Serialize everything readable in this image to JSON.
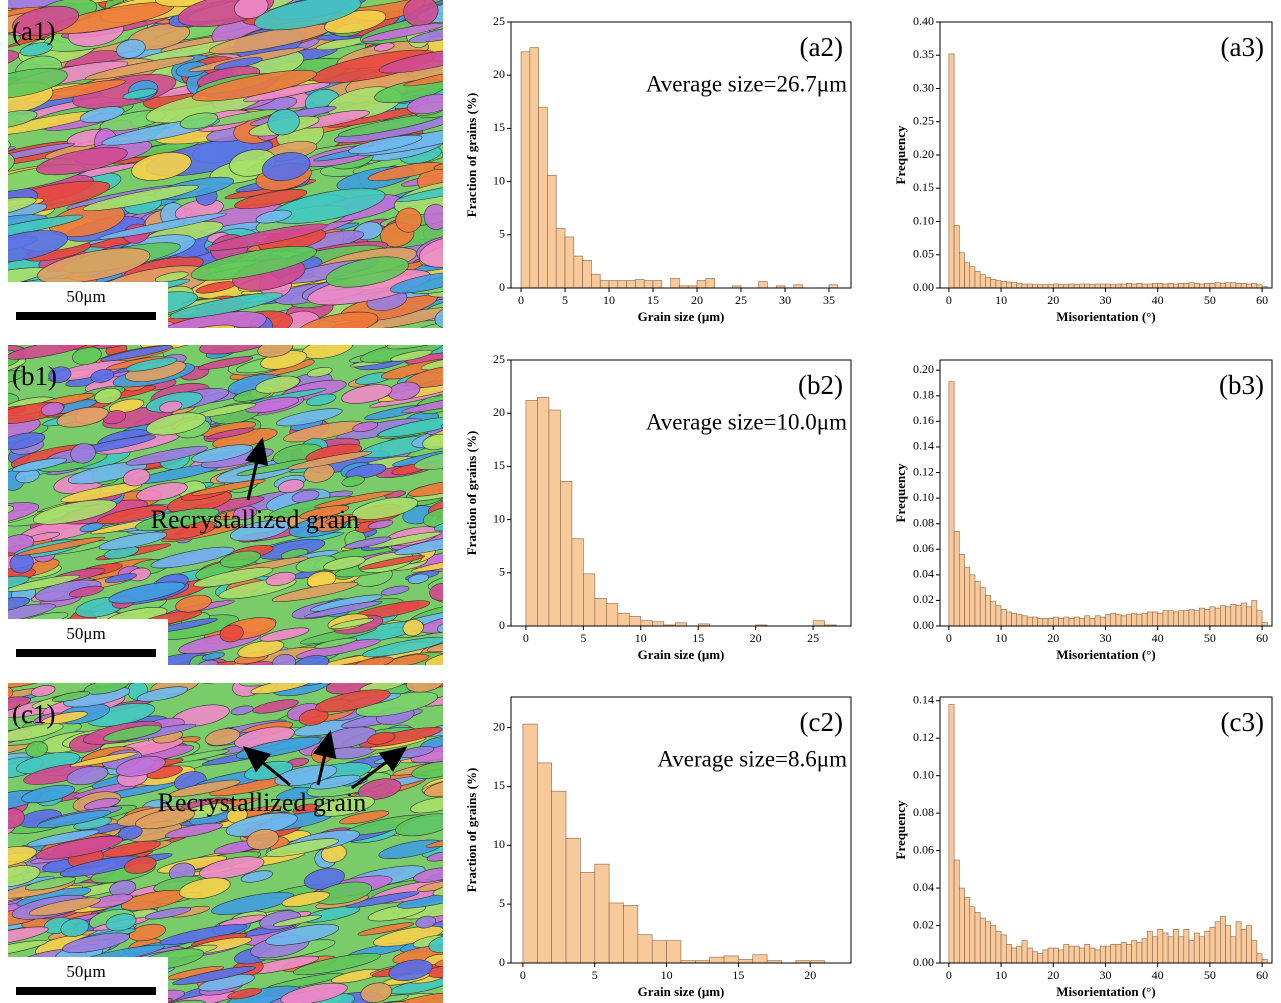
{
  "images": [
    {
      "label": "(a1)",
      "scale": "50μm"
    },
    {
      "label": "(b1)",
      "scale": "50μm",
      "annotation": "Recrystallized grain"
    },
    {
      "label": "(c1)",
      "scale": "50μm",
      "annotation": "Recrystallized grain"
    }
  ],
  "chart_data": [
    {
      "type": "histogram",
      "panel_label": "(a2)",
      "subtitle": "Average size=26.7μm",
      "x_label": "Grain size (μm)",
      "y_label": "Fraction of grains (%)",
      "color": "#f7c99b",
      "bins": [
        0,
        1,
        2,
        3,
        4,
        5,
        6,
        7,
        8,
        9,
        10,
        11,
        12,
        13,
        14,
        15,
        16,
        17,
        18,
        19,
        20,
        21,
        22,
        23,
        24,
        25,
        26,
        27,
        28,
        29,
        30,
        31,
        32,
        33,
        34,
        35,
        36,
        37
      ],
      "values": [
        22.2,
        22.6,
        17.0,
        10.6,
        5.6,
        4.8,
        3.0,
        2.6,
        1.3,
        0.7,
        0.7,
        0.7,
        0.7,
        0.8,
        0.7,
        0.7,
        0,
        0.9,
        0.2,
        0.2,
        0.7,
        0.9,
        0,
        0,
        0.2,
        0,
        0,
        0.6,
        0,
        0.2,
        0,
        0.3,
        0,
        0,
        0,
        0.3,
        0
      ],
      "xlim": [
        -1.14,
        37.5
      ],
      "ylim": [
        0,
        25
      ],
      "xticks": [
        0,
        5,
        10,
        15,
        20,
        25,
        30,
        35
      ],
      "yticks": [
        0,
        5,
        10,
        15,
        20,
        25
      ]
    },
    {
      "type": "histogram",
      "panel_label": "(a3)",
      "x_label": "Misorientation (°)",
      "y_label": "Frequency",
      "color": "#f7c99b",
      "bins": [
        0,
        1,
        2,
        3,
        4,
        5,
        6,
        7,
        8,
        9,
        10,
        11,
        12,
        13,
        14,
        15,
        16,
        17,
        18,
        19,
        20,
        21,
        22,
        23,
        24,
        25,
        26,
        27,
        28,
        29,
        30,
        31,
        32,
        33,
        34,
        35,
        36,
        37,
        38,
        39,
        40,
        41,
        42,
        43,
        44,
        45,
        46,
        47,
        48,
        49,
        50,
        51,
        52,
        53,
        54,
        55,
        56,
        57,
        58,
        59,
        60,
        61
      ],
      "values": [
        0.352,
        0.094,
        0.053,
        0.038,
        0.032,
        0.025,
        0.02,
        0.016,
        0.013,
        0.011,
        0.01,
        0.009,
        0.008,
        0.007,
        0.006,
        0.006,
        0.005,
        0.005,
        0.005,
        0.005,
        0.006,
        0.005,
        0.005,
        0.006,
        0.005,
        0.006,
        0.006,
        0.005,
        0.006,
        0.006,
        0.006,
        0.005,
        0.006,
        0.006,
        0.007,
        0.006,
        0.007,
        0.006,
        0.006,
        0.007,
        0.007,
        0.006,
        0.007,
        0.006,
        0.007,
        0.007,
        0.008,
        0.007,
        0.006,
        0.007,
        0.007,
        0.008,
        0.007,
        0.008,
        0.008,
        0.007,
        0.007,
        0.006,
        0.007,
        0.005,
        0.002
      ],
      "xlim": [
        -1.7,
        61.9
      ],
      "ylim": [
        0,
        0.4
      ],
      "xticks": [
        0,
        10,
        20,
        30,
        40,
        50,
        60
      ],
      "yticks": [
        {
          "value": 0,
          "label": "0.00"
        },
        0.05,
        {
          "value": 0.1,
          "label": "0.10"
        },
        0.15,
        {
          "value": 0.2,
          "label": "0.20"
        },
        0.25,
        {
          "value": 0.3,
          "label": "0.30"
        },
        0.35,
        {
          "value": 0.4,
          "label": "0.40"
        }
      ]
    },
    {
      "type": "histogram",
      "panel_label": "(b2)",
      "subtitle": "Average size=10.0μm",
      "x_label": "Grain size (μm)",
      "y_label": "Fraction of grains (%)",
      "color": "#f7c99b",
      "bins": [
        0,
        1,
        2,
        3,
        4,
        5,
        6,
        7,
        8,
        9,
        10,
        11,
        12,
        13,
        14,
        15,
        16,
        17,
        18,
        19,
        20,
        21,
        22,
        23,
        24,
        25,
        26,
        27,
        28
      ],
      "values": [
        21.2,
        21.5,
        20.3,
        13.6,
        8.2,
        4.9,
        2.6,
        2.1,
        1.2,
        0.9,
        0.5,
        0.4,
        0.1,
        0.3,
        0,
        0.2,
        0,
        0,
        0,
        0,
        0.1,
        0,
        0,
        0,
        0,
        0.5,
        0.1,
        0
      ],
      "xlim": [
        -1.3,
        28.3
      ],
      "ylim": [
        0,
        25
      ],
      "xticks": [
        0,
        5,
        10,
        15,
        20,
        25
      ],
      "yticks": [
        0,
        5,
        10,
        15,
        20,
        25
      ]
    },
    {
      "type": "histogram",
      "panel_label": "(b3)",
      "x_label": "Misorientation (°)",
      "y_label": "Frequency",
      "color": "#f7c99b",
      "bins": [
        0,
        1,
        2,
        3,
        4,
        5,
        6,
        7,
        8,
        9,
        10,
        11,
        12,
        13,
        14,
        15,
        16,
        17,
        18,
        19,
        20,
        21,
        22,
        23,
        24,
        25,
        26,
        27,
        28,
        29,
        30,
        31,
        32,
        33,
        34,
        35,
        36,
        37,
        38,
        39,
        40,
        41,
        42,
        43,
        44,
        45,
        46,
        47,
        48,
        49,
        50,
        51,
        52,
        53,
        54,
        55,
        56,
        57,
        58,
        59,
        60,
        61
      ],
      "values": [
        0.191,
        0.074,
        0.056,
        0.046,
        0.04,
        0.035,
        0.03,
        0.024,
        0.019,
        0.016,
        0.013,
        0.011,
        0.01,
        0.009,
        0.008,
        0.007,
        0.007,
        0.006,
        0.006,
        0.006,
        0.007,
        0.006,
        0.007,
        0.006,
        0.007,
        0.006,
        0.008,
        0.006,
        0.008,
        0.007,
        0.009,
        0.01,
        0.009,
        0.008,
        0.009,
        0.01,
        0.009,
        0.01,
        0.011,
        0.011,
        0.01,
        0.012,
        0.012,
        0.011,
        0.012,
        0.012,
        0.013,
        0.012,
        0.014,
        0.013,
        0.015,
        0.014,
        0.016,
        0.015,
        0.017,
        0.016,
        0.018,
        0.015,
        0.02,
        0.012,
        0.003
      ],
      "xlim": [
        -1.7,
        61.9
      ],
      "ylim": [
        0,
        0.208
      ],
      "xticks": [
        0,
        10,
        20,
        30,
        40,
        50,
        60
      ],
      "yticks": [
        {
          "value": 0,
          "label": "0.00"
        },
        0.02,
        0.04,
        0.06,
        0.08,
        {
          "value": 0.1,
          "label": "0.10"
        },
        0.12,
        0.14,
        0.16,
        0.18,
        {
          "value": 0.2,
          "label": "0.20"
        }
      ]
    },
    {
      "type": "histogram",
      "panel_label": "(c2)",
      "subtitle": "Average size=8.6μm",
      "x_label": "Grain size (μm)",
      "y_label": "Fraction of grains (%)",
      "color": "#f7c99b",
      "bins": [
        0,
        1,
        2,
        3,
        4,
        5,
        6,
        7,
        8,
        9,
        10,
        11,
        12,
        13,
        14,
        15,
        16,
        17,
        18,
        19,
        20,
        21,
        22
      ],
      "values": [
        20.3,
        17,
        14.6,
        10.6,
        7.7,
        8.4,
        5.1,
        4.9,
        2.4,
        1.9,
        1.9,
        0.2,
        0.2,
        0.5,
        0.6,
        0.3,
        0.7,
        0.2,
        0,
        0.2,
        0.2,
        0
      ],
      "xlim": [
        -0.83,
        22.84
      ],
      "ylim": [
        0,
        22.6
      ],
      "xticks": [
        0,
        5,
        10,
        15,
        20
      ],
      "yticks": [
        0,
        5,
        10,
        15,
        20
      ]
    },
    {
      "type": "histogram",
      "panel_label": "(c3)",
      "x_label": "Misorientation (°)",
      "y_label": "Frequency",
      "color": "#f7c99b",
      "bins": [
        0,
        1,
        2,
        3,
        4,
        5,
        6,
        7,
        8,
        9,
        10,
        11,
        12,
        13,
        14,
        15,
        16,
        17,
        18,
        19,
        20,
        21,
        22,
        23,
        24,
        25,
        26,
        27,
        28,
        29,
        30,
        31,
        32,
        33,
        34,
        35,
        36,
        37,
        38,
        39,
        40,
        41,
        42,
        43,
        44,
        45,
        46,
        47,
        48,
        49,
        50,
        51,
        52,
        53,
        54,
        55,
        56,
        57,
        58,
        59,
        60,
        61
      ],
      "values": [
        0.138,
        0.055,
        0.04,
        0.035,
        0.03,
        0.027,
        0.024,
        0.022,
        0.02,
        0.017,
        0.015,
        0.01,
        0.008,
        0.009,
        0.012,
        0.008,
        0.006,
        0.005,
        0.007,
        0.008,
        0.008,
        0.007,
        0.01,
        0.009,
        0.009,
        0.008,
        0.01,
        0.008,
        0.007,
        0.009,
        0.009,
        0.01,
        0.01,
        0.011,
        0.01,
        0.012,
        0.011,
        0.013,
        0.017,
        0.014,
        0.018,
        0.016,
        0.014,
        0.018,
        0.014,
        0.018,
        0.012,
        0.016,
        0.014,
        0.017,
        0.019,
        0.022,
        0.025,
        0.02,
        0.014,
        0.022,
        0.018,
        0.02,
        0.012,
        0.005,
        0.002
      ],
      "xlim": [
        -1.7,
        61.9
      ],
      "ylim": [
        0,
        0.142
      ],
      "xticks": [
        0,
        10,
        20,
        30,
        40,
        50,
        60
      ],
      "yticks": [
        {
          "value": 0,
          "label": "0.00"
        },
        0.02,
        0.04,
        0.06,
        0.08,
        {
          "value": 0.1,
          "label": "0.10"
        },
        0.12,
        0.14
      ]
    }
  ]
}
